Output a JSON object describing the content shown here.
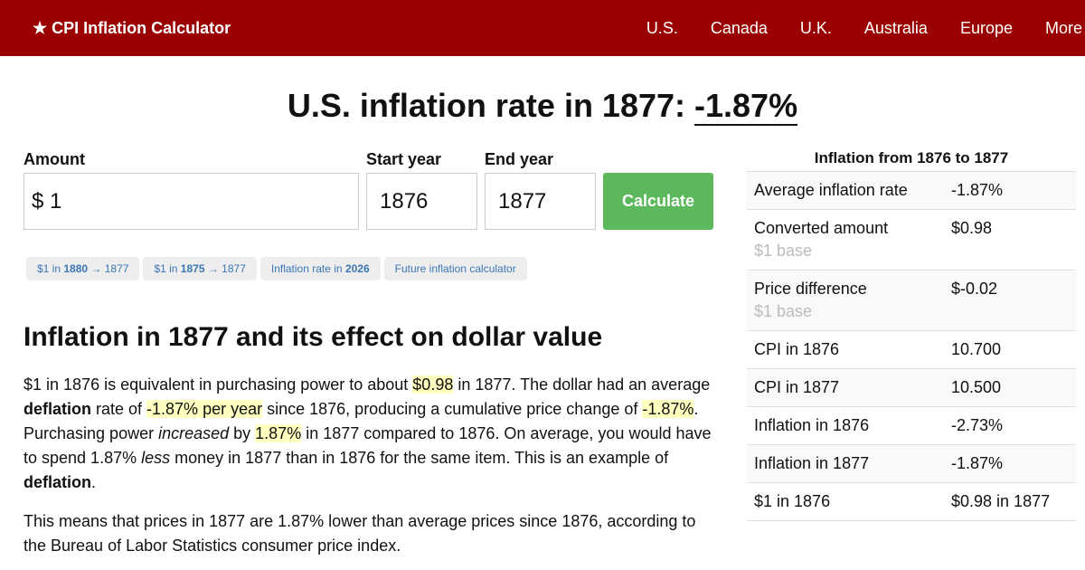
{
  "nav": {
    "brand": "★ CPI Inflation Calculator",
    "links": [
      "U.S.",
      "Canada",
      "U.K.",
      "Australia",
      "Europe",
      "More"
    ]
  },
  "title": {
    "prefix": "U.S. inflation rate in 1877: ",
    "rate": "-1.87%"
  },
  "form": {
    "amount_label": "Amount",
    "currency": "$",
    "amount": "1",
    "start_label": "Start year",
    "start": "1876",
    "end_label": "End year",
    "end": "1877",
    "calculate": "Calculate"
  },
  "chips": [
    {
      "a": "$1 in ",
      "b": "1880",
      "c": " → 1877"
    },
    {
      "a": "$1 in ",
      "b": "1875",
      "c": " → 1877"
    },
    {
      "a": "Inflation rate in ",
      "b": "2026",
      "c": ""
    },
    {
      "a": "Future inflation calculator",
      "b": "",
      "c": ""
    }
  ],
  "article": {
    "heading": "Inflation in 1877 and its effect on dollar value",
    "p1": [
      "$1 in 1876 is equivalent in purchasing power to about ",
      "$0.98",
      " in 1877. The dollar had an average ",
      "deflation",
      " rate of ",
      "-1.87% per year",
      " since 1876, producing a cumulative price change of ",
      "-1.87%",
      ". Purchasing power ",
      "increased",
      " by ",
      "1.87%",
      " in 1877 compared to 1876. On average, you would have to spend 1.87% ",
      "less",
      " money in 1877 than in 1876 for the same item. This is an example of ",
      "deflation",
      "."
    ],
    "p2": "This means that prices in 1877 are 1.87% lower than average prices since 1876, according to the Bureau of Labor Statistics consumer price index."
  },
  "table": {
    "title": "Inflation from 1876 to 1877",
    "rows": [
      {
        "k": "Average inflation rate",
        "v": "-1.87%",
        "sub": ""
      },
      {
        "k": "Converted amount",
        "v": "$0.98",
        "sub": "$1 base"
      },
      {
        "k": "Price difference",
        "v": "$-0.02",
        "sub": "$1 base"
      },
      {
        "k": "CPI in 1876",
        "v": "10.700",
        "sub": ""
      },
      {
        "k": "CPI in 1877",
        "v": "10.500",
        "sub": ""
      },
      {
        "k": "Inflation in 1876",
        "v": "-2.73%",
        "sub": ""
      },
      {
        "k": "Inflation in 1877",
        "v": "-1.87%",
        "sub": ""
      },
      {
        "k": "$1 in 1876",
        "v": "$0.98 in 1877",
        "sub": ""
      }
    ]
  },
  "colors": {
    "nav": "#9b0000",
    "button": "#5cb85c",
    "highlight": "#ffffc0",
    "link": "#3a76b5"
  }
}
